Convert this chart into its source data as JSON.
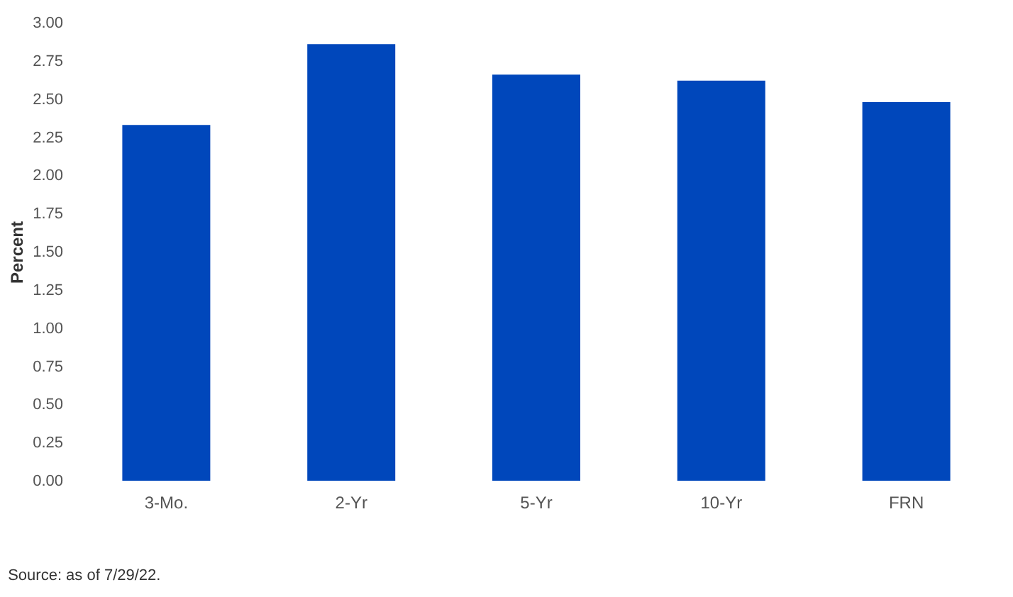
{
  "chart_data": {
    "type": "bar",
    "ylabel": "Percent",
    "categories": [
      "3-Mo.",
      "2-Yr",
      "5-Yr",
      "10-Yr",
      "FRN"
    ],
    "values": [
      2.33,
      2.86,
      2.66,
      2.62,
      2.48
    ],
    "color": "#0047bb",
    "ylim": [
      0,
      3
    ],
    "yticks": [
      {
        "value": 0,
        "label": "0.00"
      },
      {
        "value": 0.25,
        "label": "0.25"
      },
      {
        "value": 0.5,
        "label": "0.50"
      },
      {
        "value": 0.75,
        "label": "0.75"
      },
      {
        "value": 1,
        "label": "1.00"
      },
      {
        "value": 1.25,
        "label": "1.25"
      },
      {
        "value": 1.5,
        "label": "1.50"
      },
      {
        "value": 1.75,
        "label": "1.75"
      },
      {
        "value": 2,
        "label": "2.00"
      },
      {
        "value": 2.25,
        "label": "2.25"
      },
      {
        "value": 2.5,
        "label": "2.50"
      },
      {
        "value": 2.75,
        "label": "2.75"
      },
      {
        "value": 3,
        "label": "3.00"
      }
    ],
    "grid": false,
    "annotations": [
      "Source: as of 7/29/22."
    ]
  }
}
